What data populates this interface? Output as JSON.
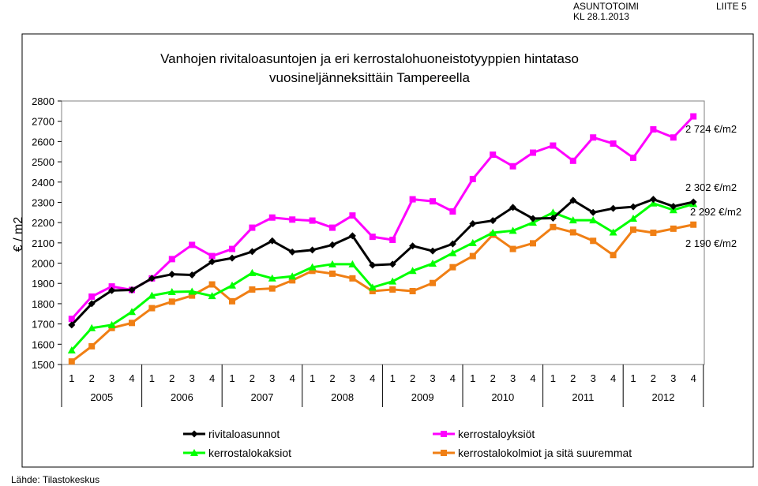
{
  "header": {
    "org": "ASUNTOTOIMI",
    "meeting": "KL 28.1.2013",
    "appendix": "LIITE 5"
  },
  "source": "Lähde: Tilastokeskus",
  "chart_data": {
    "type": "line",
    "title_line1": "Vanhojen rivitaloasuntojen ja eri kerrostalohuoneistotyyppien hintataso",
    "title_line2": "vuosineljänneksittäin Tampereella",
    "ylabel": "€ / m2",
    "ylim": [
      1500,
      2800
    ],
    "yticks": [
      1500,
      1600,
      1700,
      1800,
      1900,
      2000,
      2100,
      2200,
      2300,
      2400,
      2500,
      2600,
      2700,
      2800
    ],
    "quarters": [
      "1",
      "2",
      "3",
      "4",
      "1",
      "2",
      "3",
      "4",
      "1",
      "2",
      "3",
      "4",
      "1",
      "2",
      "3",
      "4",
      "1",
      "2",
      "3",
      "4",
      "1",
      "2",
      "3",
      "4",
      "1",
      "2",
      "3",
      "4",
      "1",
      "2",
      "3",
      "4"
    ],
    "years": [
      "2005",
      "2006",
      "2007",
      "2008",
      "2009",
      "2010",
      "2011",
      "2012"
    ],
    "legend_placement": "bottom",
    "series": [
      {
        "name": "rivitaloasunnot",
        "color": "#000000",
        "marker": "diamond",
        "values": [
          1695,
          1800,
          1865,
          1868,
          1925,
          1945,
          1942,
          2007,
          2025,
          2057,
          2110,
          2055,
          2065,
          2090,
          2135,
          1990,
          1995,
          2085,
          2060,
          2095,
          2195,
          2210,
          2275,
          2220,
          2222,
          2310,
          2250,
          2270,
          2278,
          2315,
          2280,
          2302
        ]
      },
      {
        "name": "kerrostaloyksiöt",
        "color": "#ff00ff",
        "marker": "square",
        "values": [
          1725,
          1835,
          1885,
          1868,
          1925,
          2020,
          2090,
          2035,
          2070,
          2175,
          2225,
          2215,
          2210,
          2175,
          2235,
          2130,
          2115,
          2315,
          2305,
          2255,
          2415,
          2535,
          2478,
          2545,
          2580,
          2505,
          2620,
          2590,
          2520,
          2660,
          2620,
          2724
        ]
      },
      {
        "name": "kerrostalokaksiot",
        "color": "#00ff00",
        "marker": "triangle",
        "values": [
          1570,
          1680,
          1695,
          1760,
          1840,
          1858,
          1860,
          1838,
          1890,
          1952,
          1925,
          1935,
          1980,
          1995,
          1995,
          1880,
          1910,
          1962,
          1998,
          2050,
          2100,
          2150,
          2160,
          2200,
          2250,
          2212,
          2212,
          2152,
          2220,
          2295,
          2262,
          2292
        ]
      },
      {
        "name": "kerrostalokolmiot ja sitä suuremmat",
        "color": "#f07f14",
        "marker": "square",
        "values": [
          1515,
          1590,
          1680,
          1705,
          1778,
          1810,
          1840,
          1895,
          1812,
          1870,
          1875,
          1915,
          1962,
          1948,
          1925,
          1862,
          1870,
          1862,
          1902,
          1980,
          2035,
          2140,
          2070,
          2098,
          2178,
          2152,
          2110,
          2040,
          2165,
          2150,
          2170,
          2190
        ]
      }
    ],
    "annotations": [
      "2 724 €/m2",
      "2 302 €/m2",
      "2 292 €/m2",
      "2 190 €/m2"
    ]
  }
}
